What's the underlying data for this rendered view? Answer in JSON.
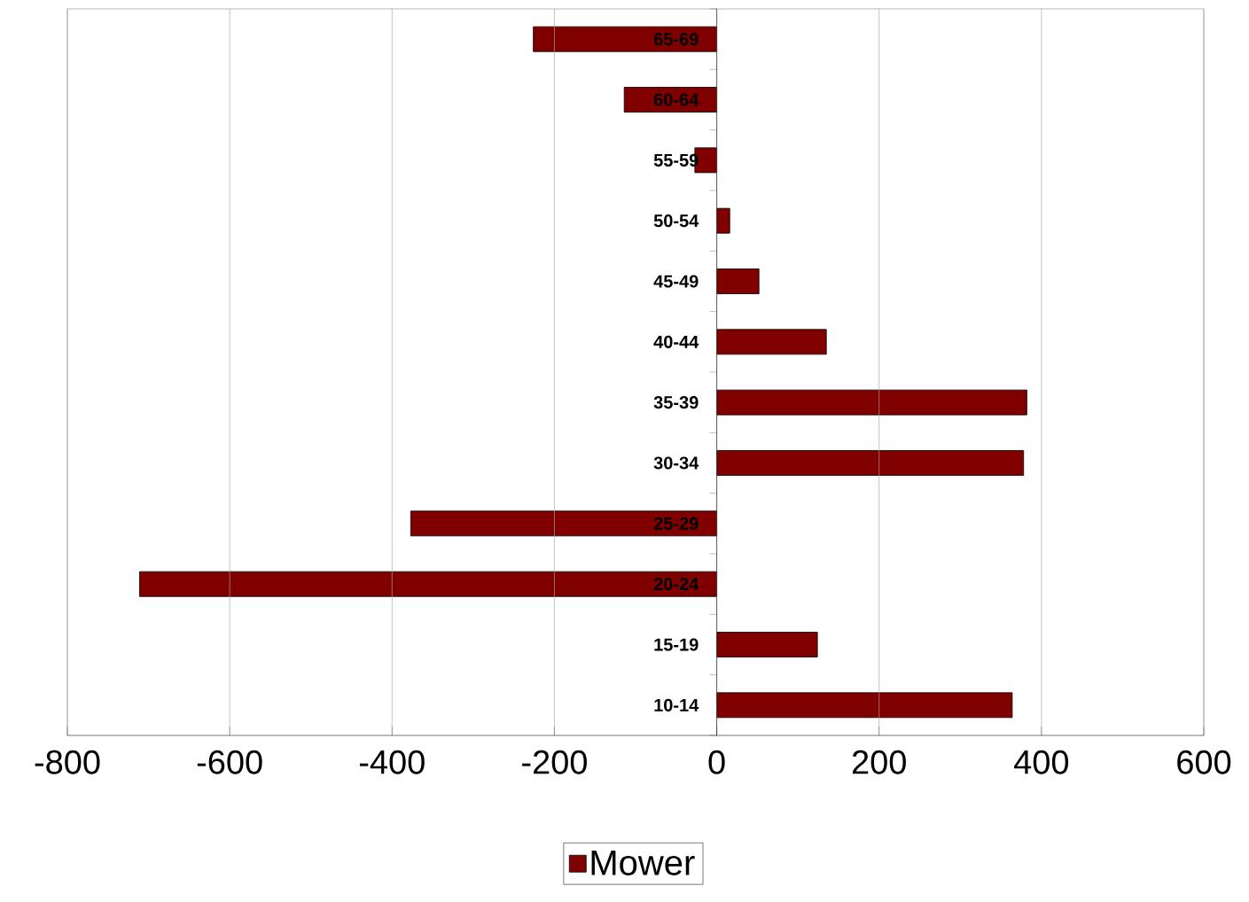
{
  "chart_data": {
    "type": "bar",
    "orientation": "horizontal",
    "categories": [
      "65-69",
      "60-64",
      "55-59",
      "50-54",
      "45-49",
      "40-44",
      "35-39",
      "30-34",
      "25-29",
      "20-24",
      "15-19",
      "10-14"
    ],
    "series": [
      {
        "name": "Mower",
        "color": "#800000",
        "values": [
          -226,
          -114,
          -27,
          16,
          52,
          135,
          382,
          378,
          -377,
          -711,
          124,
          364
        ]
      }
    ],
    "xlim": [
      -800,
      600
    ],
    "xticks": [
      -800,
      -600,
      -400,
      -200,
      0,
      200,
      400,
      600
    ],
    "grid": "x",
    "legend": "bottom"
  }
}
